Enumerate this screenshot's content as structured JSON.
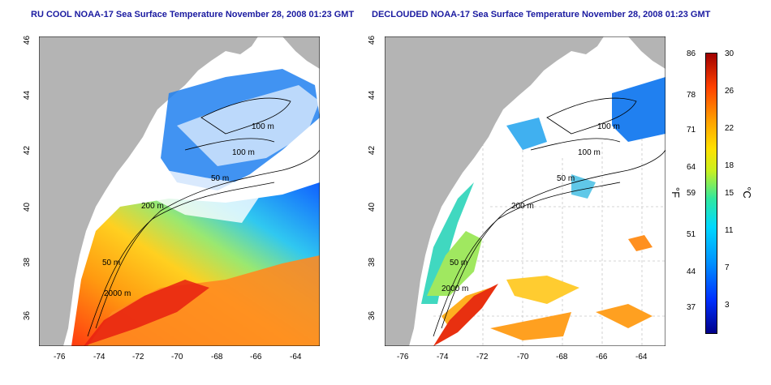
{
  "titles": {
    "left": "RU COOL NOAA-17 Sea Surface Temperature November 28, 2008 01:23 GMT",
    "right": "DECLOUDED NOAA-17 Sea Surface Temperature November 28, 2008 01:23 GMT"
  },
  "axes": {
    "x_ticks": [
      "-76",
      "-74",
      "-72",
      "-70",
      "-68",
      "-66",
      "-64"
    ],
    "y_ticks": [
      "36",
      "38",
      "40",
      "42",
      "44",
      "46"
    ]
  },
  "contours": {
    "left": [
      "100 m",
      "100 m",
      "50 m",
      "200 m",
      "50 m",
      "2000 m"
    ],
    "right": [
      "100 m",
      "100 m",
      "50 m",
      "200 m",
      "50 m",
      "2000 m"
    ]
  },
  "colorbar": {
    "fahrenheit": [
      "86",
      "78",
      "71",
      "64",
      "59",
      "51",
      "44",
      "37"
    ],
    "celsius": [
      "30",
      "26",
      "22",
      "18",
      "15",
      "11",
      "7",
      "3"
    ],
    "fahrenheit_unit": "°F",
    "celsius_unit": "°C"
  },
  "colors": {
    "land": "#b4b4b4",
    "title": "#1a1aa0"
  }
}
